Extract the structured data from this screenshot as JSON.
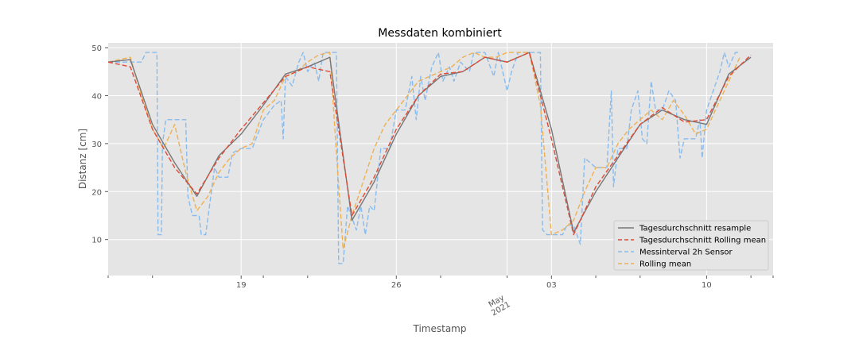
{
  "chart_data": {
    "type": "line",
    "title": "Messdaten kombiniert",
    "xlabel": "Timestamp",
    "ylabel": "Distanz [cm]",
    "x_range": [
      "2021-04-13",
      "2021-05-13"
    ],
    "ylim": [
      2.5,
      51
    ],
    "yticks": [
      10,
      20,
      30,
      40,
      50
    ],
    "xticks": [
      {
        "date": "2021-04-19",
        "label": "19"
      },
      {
        "date": "2021-04-26",
        "label": "26"
      },
      {
        "date": "2021-05-03",
        "label": "03"
      },
      {
        "date": "2021-05-10",
        "label": "10"
      }
    ],
    "minor_xticks": [
      "2021-04-13",
      "2021-04-15",
      "2021-04-20",
      "2021-04-22",
      "2021-04-28",
      "2021-05-01",
      "2021-05-05",
      "2021-05-07",
      "2021-05-12",
      "2021-05-13"
    ],
    "month_label": "May\n2021",
    "grid": true,
    "legend_position": "lower right",
    "series": [
      {
        "name": "Tagesdurchschnitt resample",
        "color": "#777777",
        "style": "solid",
        "points": [
          [
            "2021-04-13",
            47
          ],
          [
            "2021-04-14",
            47.5
          ],
          [
            "2021-04-15",
            34
          ],
          [
            "2021-04-16",
            26
          ],
          [
            "2021-04-17",
            19
          ],
          [
            "2021-04-18",
            27.5
          ],
          [
            "2021-04-19",
            32
          ],
          [
            "2021-04-20",
            38
          ],
          [
            "2021-04-21",
            44.5
          ],
          [
            "2021-04-22",
            46
          ],
          [
            "2021-04-23",
            48
          ],
          [
            "2021-04-24",
            14
          ],
          [
            "2021-04-25",
            22
          ],
          [
            "2021-04-26",
            32
          ],
          [
            "2021-04-27",
            40
          ],
          [
            "2021-04-28",
            44
          ],
          [
            "2021-04-29",
            45
          ],
          [
            "2021-04-30",
            48
          ],
          [
            "2021-05-01",
            47
          ],
          [
            "2021-05-02",
            49
          ],
          [
            "2021-05-03",
            33
          ],
          [
            "2021-05-04",
            11.5
          ],
          [
            "2021-05-05",
            20
          ],
          [
            "2021-05-06",
            27
          ],
          [
            "2021-05-07",
            34
          ],
          [
            "2021-05-08",
            37
          ],
          [
            "2021-05-09",
            35
          ],
          [
            "2021-05-10",
            34
          ],
          [
            "2021-05-11",
            44.5
          ],
          [
            "2021-05-12",
            48
          ]
        ]
      },
      {
        "name": "Tagesdurchschnitt Rolling mean",
        "color": "#e24a33",
        "style": "dashed",
        "points": [
          [
            "2021-04-13",
            47
          ],
          [
            "2021-04-14",
            46
          ],
          [
            "2021-04-15",
            33
          ],
          [
            "2021-04-16",
            25
          ],
          [
            "2021-04-17",
            19.5
          ],
          [
            "2021-04-18",
            27
          ],
          [
            "2021-04-19",
            33
          ],
          [
            "2021-04-20",
            38.5
          ],
          [
            "2021-04-21",
            44
          ],
          [
            "2021-04-22",
            46
          ],
          [
            "2021-04-23",
            45
          ],
          [
            "2021-04-24",
            15
          ],
          [
            "2021-04-25",
            23
          ],
          [
            "2021-04-26",
            33
          ],
          [
            "2021-04-27",
            40
          ],
          [
            "2021-04-28",
            44.5
          ],
          [
            "2021-04-29",
            45
          ],
          [
            "2021-04-30",
            48
          ],
          [
            "2021-05-01",
            47
          ],
          [
            "2021-05-02",
            49
          ],
          [
            "2021-05-03",
            31
          ],
          [
            "2021-05-04",
            11
          ],
          [
            "2021-05-05",
            21
          ],
          [
            "2021-05-06",
            27.5
          ],
          [
            "2021-05-07",
            34
          ],
          [
            "2021-05-08",
            37.5
          ],
          [
            "2021-05-09",
            34.5
          ],
          [
            "2021-05-10",
            35
          ],
          [
            "2021-05-11",
            44
          ],
          [
            "2021-05-12",
            48.5
          ]
        ]
      },
      {
        "name": "Messinterval 2h Sensor",
        "color": "#88bbee",
        "style": "dashed",
        "points": [
          [
            "2021-04-13",
            47
          ],
          [
            "2021-04-14.5",
            47
          ],
          [
            "2021-04-14.7",
            49
          ],
          [
            "2021-04-15.2",
            49
          ],
          [
            "2021-04-15.25",
            11
          ],
          [
            "2021-04-15.4",
            11
          ],
          [
            "2021-04-15.45",
            30
          ],
          [
            "2021-04-15.6",
            35
          ],
          [
            "2021-04-16.5",
            35
          ],
          [
            "2021-04-16.6",
            19
          ],
          [
            "2021-04-16.8",
            15
          ],
          [
            "2021-04-17.1",
            15
          ],
          [
            "2021-04-17.2",
            11
          ],
          [
            "2021-04-17.4",
            11
          ],
          [
            "2021-04-17.6",
            18
          ],
          [
            "2021-04-17.8",
            25
          ],
          [
            "2021-04-18",
            23
          ],
          [
            "2021-04-18.4",
            23
          ],
          [
            "2021-04-18.6",
            28
          ],
          [
            "2021-04-19",
            29
          ],
          [
            "2021-04-19.5",
            29
          ],
          [
            "2021-04-20",
            35
          ],
          [
            "2021-04-20.5",
            38
          ],
          [
            "2021-04-20.8",
            39
          ],
          [
            "2021-04-20.9",
            31
          ],
          [
            "2021-04-21",
            44
          ],
          [
            "2021-04-21.3",
            42
          ],
          [
            "2021-04-21.6",
            47
          ],
          [
            "2021-04-21.8",
            49
          ],
          [
            "2021-04-22",
            45
          ],
          [
            "2021-04-22.3",
            47
          ],
          [
            "2021-04-22.5",
            43
          ],
          [
            "2021-04-22.7",
            49
          ],
          [
            "2021-04-23.3",
            49
          ],
          [
            "2021-04-23.4",
            5
          ],
          [
            "2021-04-23.6",
            5
          ],
          [
            "2021-04-23.8",
            17
          ],
          [
            "2021-04-24.2",
            12
          ],
          [
            "2021-04-24.4",
            17
          ],
          [
            "2021-04-24.6",
            11
          ],
          [
            "2021-04-24.8",
            17
          ],
          [
            "2021-04-25",
            16
          ],
          [
            "2021-04-25.3",
            29
          ],
          [
            "2021-04-25.7",
            29
          ],
          [
            "2021-04-26",
            37
          ],
          [
            "2021-04-26.4",
            37
          ],
          [
            "2021-04-26.7",
            44
          ],
          [
            "2021-04-26.9",
            35
          ],
          [
            "2021-04-27.1",
            44
          ],
          [
            "2021-04-27.3",
            39
          ],
          [
            "2021-04-27.6",
            46
          ],
          [
            "2021-04-27.9",
            49
          ],
          [
            "2021-04-28.1",
            43
          ],
          [
            "2021-04-28.4",
            46
          ],
          [
            "2021-04-28.6",
            43
          ],
          [
            "2021-04-28.9",
            47
          ],
          [
            "2021-04-29.3",
            45
          ],
          [
            "2021-04-29.5",
            49
          ],
          [
            "2021-04-30",
            49
          ],
          [
            "2021-04-30.4",
            44
          ],
          [
            "2021-04-30.6",
            49
          ],
          [
            "2021-05-01",
            41
          ],
          [
            "2021-05-01.2",
            45
          ],
          [
            "2021-05-01.5",
            49
          ],
          [
            "2021-05-02.5",
            49
          ],
          [
            "2021-05-02.6",
            12
          ],
          [
            "2021-05-02.8",
            11
          ],
          [
            "2021-05-03.5",
            11
          ],
          [
            "2021-05-03.7",
            13
          ],
          [
            "2021-05-04",
            13
          ],
          [
            "2021-05-04.3",
            9
          ],
          [
            "2021-05-04.5",
            27
          ],
          [
            "2021-05-05",
            25
          ],
          [
            "2021-05-05.5",
            25
          ],
          [
            "2021-05-05.7",
            41
          ],
          [
            "2021-05-05.8",
            21
          ],
          [
            "2021-05-06",
            29
          ],
          [
            "2021-05-06.4",
            29
          ],
          [
            "2021-05-06.6",
            37
          ],
          [
            "2021-05-06.9",
            41
          ],
          [
            "2021-05-07.1",
            31
          ],
          [
            "2021-05-07.3",
            30
          ],
          [
            "2021-05-07.5",
            43
          ],
          [
            "2021-05-07.7",
            37
          ],
          [
            "2021-05-08",
            37
          ],
          [
            "2021-05-08.3",
            41
          ],
          [
            "2021-05-08.6",
            39
          ],
          [
            "2021-05-08.8",
            27
          ],
          [
            "2021-05-09",
            31
          ],
          [
            "2021-05-09.5",
            31
          ],
          [
            "2021-05-09.7",
            35
          ],
          [
            "2021-05-09.8",
            27
          ],
          [
            "2021-05-10",
            37
          ],
          [
            "2021-05-10.3",
            41
          ],
          [
            "2021-05-10.6",
            45
          ],
          [
            "2021-05-10.8",
            49
          ],
          [
            "2021-05-11",
            46
          ],
          [
            "2021-05-11.3",
            49
          ],
          [
            "2021-05-11.5",
            49
          ]
        ]
      },
      {
        "name": "Rolling mean",
        "color": "#f0b050",
        "style": "dashed",
        "points": [
          [
            "2021-04-13",
            47
          ],
          [
            "2021-04-14",
            48
          ],
          [
            "2021-04-14.5",
            40
          ],
          [
            "2021-04-15",
            33
          ],
          [
            "2021-04-15.5",
            29
          ],
          [
            "2021-04-16",
            34
          ],
          [
            "2021-04-16.5",
            24
          ],
          [
            "2021-04-17",
            16
          ],
          [
            "2021-04-17.5",
            19
          ],
          [
            "2021-04-18",
            24
          ],
          [
            "2021-04-18.5",
            27
          ],
          [
            "2021-04-19",
            29
          ],
          [
            "2021-04-19.5",
            30
          ],
          [
            "2021-04-20",
            37
          ],
          [
            "2021-04-20.5",
            39
          ],
          [
            "2021-04-21",
            44
          ],
          [
            "2021-04-21.5",
            45
          ],
          [
            "2021-04-22",
            47
          ],
          [
            "2021-04-22.5",
            48.5
          ],
          [
            "2021-04-23",
            49
          ],
          [
            "2021-04-23.3",
            28
          ],
          [
            "2021-04-23.6",
            8
          ],
          [
            "2021-04-24",
            15
          ],
          [
            "2021-04-24.5",
            22
          ],
          [
            "2021-04-25",
            29
          ],
          [
            "2021-04-25.5",
            34
          ],
          [
            "2021-04-26",
            37
          ],
          [
            "2021-04-26.5",
            40
          ],
          [
            "2021-04-27",
            43
          ],
          [
            "2021-04-27.5",
            44
          ],
          [
            "2021-04-28",
            45
          ],
          [
            "2021-04-28.5",
            46
          ],
          [
            "2021-04-29",
            48
          ],
          [
            "2021-04-29.5",
            49
          ],
          [
            "2021-04-30",
            48
          ],
          [
            "2021-04-30.5",
            48
          ],
          [
            "2021-05-01",
            49
          ],
          [
            "2021-05-01.5",
            49
          ],
          [
            "2021-05-02",
            49
          ],
          [
            "2021-05-02.5",
            38
          ],
          [
            "2021-05-03",
            11
          ],
          [
            "2021-05-03.5",
            12
          ],
          [
            "2021-05-04",
            14
          ],
          [
            "2021-05-04.5",
            20
          ],
          [
            "2021-05-05",
            25
          ],
          [
            "2021-05-05.5",
            25
          ],
          [
            "2021-05-06",
            30
          ],
          [
            "2021-05-06.5",
            33
          ],
          [
            "2021-05-07",
            35
          ],
          [
            "2021-05-07.5",
            37
          ],
          [
            "2021-05-08",
            35
          ],
          [
            "2021-05-08.5",
            39
          ],
          [
            "2021-05-09",
            36
          ],
          [
            "2021-05-09.5",
            32
          ],
          [
            "2021-05-10",
            33
          ],
          [
            "2021-05-10.5",
            38
          ],
          [
            "2021-05-11",
            43
          ],
          [
            "2021-05-11.5",
            48
          ]
        ]
      }
    ]
  }
}
